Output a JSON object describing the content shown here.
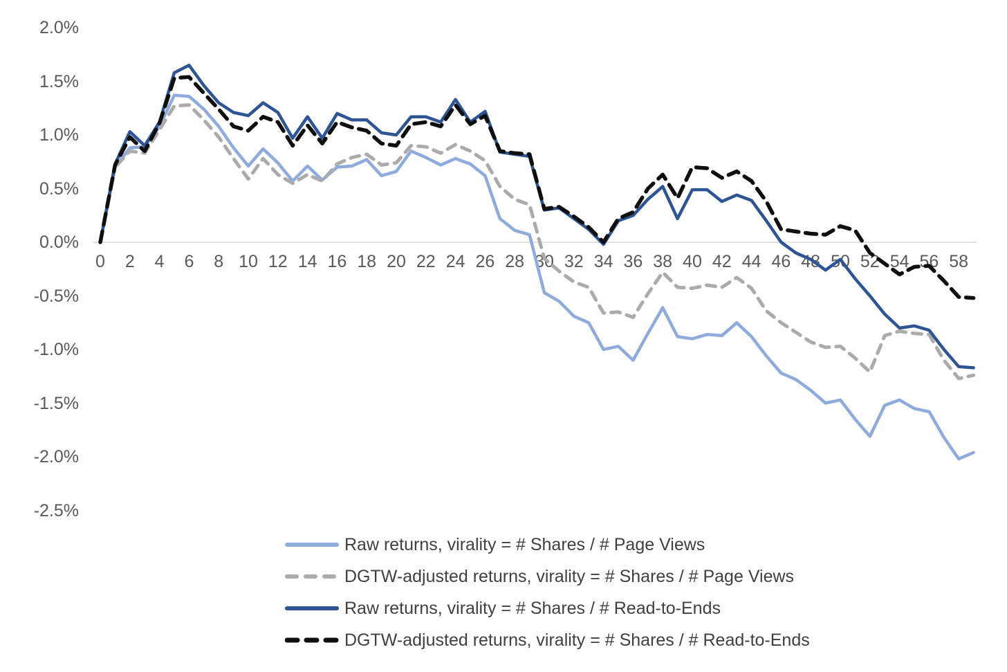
{
  "figure": {
    "background_color": "#FFFFFF",
    "axis_line_color": "#D9D9D9",
    "tick_label_color": "#595959",
    "legend_text_color": "#404040"
  },
  "y_axis": {
    "labels": [
      "2.0%",
      "1.5%",
      "1.0%",
      "0.5%",
      "0.0%",
      "-0.5%",
      "-1.0%",
      "-1.5%",
      "-2.0%",
      "-2.5%"
    ],
    "values": [
      2.0,
      1.5,
      1.0,
      0.5,
      0.0,
      -0.5,
      -1.0,
      -1.5,
      -2.0,
      -2.5
    ],
    "unit": "percent"
  },
  "x_axis": {
    "labels": [
      "0",
      "2",
      "4",
      "6",
      "8",
      "10",
      "12",
      "14",
      "16",
      "18",
      "20",
      "22",
      "24",
      "26",
      "28",
      "30",
      "32",
      "34",
      "36",
      "38",
      "40",
      "42",
      "44",
      "46",
      "48",
      "50",
      "52",
      "54",
      "56",
      "58"
    ],
    "values": [
      0,
      2,
      4,
      6,
      8,
      10,
      12,
      14,
      16,
      18,
      20,
      22,
      24,
      26,
      28,
      30,
      32,
      34,
      36,
      38,
      40,
      42,
      44,
      46,
      48,
      50,
      52,
      54,
      56,
      58
    ]
  },
  "chart_data": {
    "type": "line",
    "title": "",
    "xlabel": "",
    "ylabel": "",
    "xlim": [
      0,
      59
    ],
    "ylim": [
      -2.5,
      2.0
    ],
    "y_unit": "percent",
    "grid": "zero-axis-line-only",
    "legend_position": "bottom",
    "x": [
      0,
      1,
      2,
      3,
      4,
      5,
      6,
      7,
      8,
      9,
      10,
      11,
      12,
      13,
      14,
      15,
      16,
      17,
      18,
      19,
      20,
      21,
      22,
      23,
      24,
      25,
      26,
      27,
      28,
      29,
      30,
      31,
      32,
      33,
      34,
      35,
      36,
      37,
      38,
      39,
      40,
      41,
      42,
      43,
      44,
      45,
      46,
      47,
      48,
      49,
      50,
      51,
      52,
      53,
      54,
      55,
      56,
      57,
      58,
      59
    ],
    "series": [
      {
        "name": "Raw returns, virality = # Shares / # Page Views",
        "color": "#8FAADC",
        "style": "solid",
        "values": [
          0.0,
          0.7,
          0.88,
          0.89,
          1.08,
          1.37,
          1.36,
          1.24,
          1.08,
          0.88,
          0.71,
          0.87,
          0.74,
          0.57,
          0.71,
          0.58,
          0.7,
          0.71,
          0.77,
          0.62,
          0.66,
          0.85,
          0.79,
          0.72,
          0.78,
          0.73,
          0.62,
          0.22,
          0.11,
          0.07,
          -0.47,
          -0.55,
          -0.69,
          -0.75,
          -1.0,
          -0.97,
          -1.1,
          -0.85,
          -0.61,
          -0.88,
          -0.9,
          -0.86,
          -0.87,
          -0.75,
          -0.88,
          -1.06,
          -1.22,
          -1.28,
          -1.38,
          -1.5,
          -1.47,
          -1.65,
          -1.81,
          -1.52,
          -1.47,
          -1.55,
          -1.58,
          -1.82,
          -2.02,
          -1.96
        ]
      },
      {
        "name": "DGTW-adjusted returns, virality = # Shares / # Page Views",
        "color": "#ABABAB",
        "style": "dashed",
        "values": [
          0.0,
          0.7,
          0.85,
          0.83,
          1.05,
          1.27,
          1.28,
          1.14,
          0.98,
          0.78,
          0.59,
          0.78,
          0.63,
          0.55,
          0.63,
          0.57,
          0.73,
          0.79,
          0.82,
          0.72,
          0.74,
          0.9,
          0.89,
          0.83,
          0.91,
          0.85,
          0.76,
          0.52,
          0.4,
          0.35,
          -0.15,
          -0.27,
          -0.37,
          -0.42,
          -0.66,
          -0.65,
          -0.7,
          -0.48,
          -0.28,
          -0.42,
          -0.43,
          -0.4,
          -0.42,
          -0.33,
          -0.43,
          -0.64,
          -0.75,
          -0.84,
          -0.93,
          -0.98,
          -0.97,
          -1.08,
          -1.21,
          -0.87,
          -0.83,
          -0.85,
          -0.86,
          -1.1,
          -1.27,
          -1.24
        ]
      },
      {
        "name": "Raw returns, virality = # Shares / # Read-to-Ends",
        "color": "#2E5496",
        "style": "solid",
        "values": [
          0.0,
          0.73,
          1.03,
          0.9,
          1.12,
          1.58,
          1.65,
          1.46,
          1.3,
          1.21,
          1.18,
          1.3,
          1.21,
          0.97,
          1.17,
          0.97,
          1.2,
          1.14,
          1.14,
          1.02,
          1.0,
          1.17,
          1.17,
          1.12,
          1.33,
          1.12,
          1.22,
          0.84,
          0.82,
          0.8,
          0.3,
          0.32,
          0.22,
          0.12,
          -0.02,
          0.2,
          0.25,
          0.4,
          0.52,
          0.22,
          0.49,
          0.49,
          0.38,
          0.44,
          0.39,
          0.2,
          0.0,
          -0.1,
          -0.16,
          -0.26,
          -0.16,
          -0.34,
          -0.5,
          -0.67,
          -0.8,
          -0.78,
          -0.82,
          -1.0,
          -1.16,
          -1.17
        ]
      },
      {
        "name": "DGTW-adjusted returns, virality = # Shares / # Read-to-Ends",
        "color": "#0F0F0F",
        "style": "dashed",
        "values": [
          0.0,
          0.72,
          0.98,
          0.85,
          1.11,
          1.53,
          1.54,
          1.39,
          1.24,
          1.08,
          1.04,
          1.17,
          1.12,
          0.9,
          1.09,
          0.92,
          1.12,
          1.07,
          1.04,
          0.92,
          0.9,
          1.1,
          1.12,
          1.08,
          1.28,
          1.1,
          1.18,
          0.85,
          0.83,
          0.82,
          0.31,
          0.33,
          0.24,
          0.14,
          0.0,
          0.22,
          0.28,
          0.5,
          0.63,
          0.41,
          0.7,
          0.69,
          0.6,
          0.66,
          0.57,
          0.38,
          0.12,
          0.1,
          0.08,
          0.07,
          0.15,
          0.11,
          -0.1,
          -0.2,
          -0.3,
          -0.23,
          -0.22,
          -0.36,
          -0.51,
          -0.52
        ]
      }
    ]
  }
}
